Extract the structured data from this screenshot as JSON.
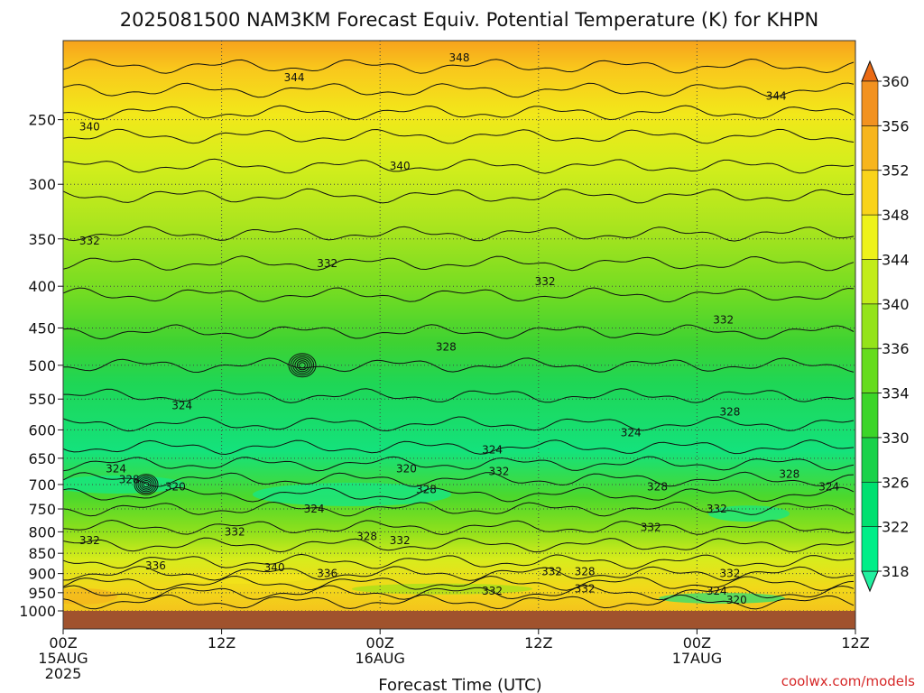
{
  "chart_data": {
    "type": "heatmap",
    "title": "2025081500 NAM3KM Forecast Equiv. Potential Temperature (K) for KHPN",
    "xlabel": "Forecast Time (UTC)",
    "ylabel": "",
    "y_axis": {
      "scale": "log-pressure",
      "inverted": true,
      "ticks": [
        "250",
        "300",
        "350",
        "400",
        "450",
        "500",
        "550",
        "600",
        "650",
        "700",
        "750",
        "800",
        "850",
        "900",
        "950",
        "1000"
      ],
      "range": [
        1000,
        200
      ]
    },
    "x_axis": {
      "range_hours": [
        0,
        60
      ],
      "ticks": [
        {
          "line1": "00Z",
          "line2": "15AUG",
          "line3": "2025"
        },
        {
          "line1": "12Z",
          "line2": "",
          "line3": ""
        },
        {
          "line1": "00Z",
          "line2": "16AUG",
          "line3": ""
        },
        {
          "line1": "12Z",
          "line2": "",
          "line3": ""
        },
        {
          "line1": "00Z",
          "line2": "17AUG",
          "line3": ""
        },
        {
          "line1": "12Z",
          "line2": "",
          "line3": ""
        }
      ]
    },
    "colorbar": {
      "ticks": [
        "318",
        "322",
        "326",
        "330",
        "334",
        "336",
        "340",
        "344",
        "348",
        "352",
        "356",
        "360"
      ]
    },
    "contour_labels": [
      {
        "text": "348",
        "hour": 30,
        "level": 210
      },
      {
        "text": "344",
        "hour": 17.5,
        "level": 222
      },
      {
        "text": "344",
        "hour": 54,
        "level": 234
      },
      {
        "text": "340",
        "hour": 2,
        "level": 255
      },
      {
        "text": "340",
        "hour": 25.5,
        "level": 285
      },
      {
        "text": "332",
        "hour": 2,
        "level": 352
      },
      {
        "text": "332",
        "hour": 20,
        "level": 375
      },
      {
        "text": "332",
        "hour": 36.5,
        "level": 395
      },
      {
        "text": "332",
        "hour": 50,
        "level": 440
      },
      {
        "text": "328",
        "hour": 29,
        "level": 475
      },
      {
        "text": "328",
        "hour": 50.5,
        "level": 570
      },
      {
        "text": "324",
        "hour": 9,
        "level": 560
      },
      {
        "text": "324",
        "hour": 43,
        "level": 605
      },
      {
        "text": "324",
        "hour": 32.5,
        "level": 635
      },
      {
        "text": "324",
        "hour": 4,
        "level": 670
      },
      {
        "text": "328",
        "hour": 5,
        "level": 690
      },
      {
        "text": "320",
        "hour": 8.5,
        "level": 705
      },
      {
        "text": "320",
        "hour": 26,
        "level": 670
      },
      {
        "text": "332",
        "hour": 33,
        "level": 675
      },
      {
        "text": "328",
        "hour": 27.5,
        "level": 710
      },
      {
        "text": "324",
        "hour": 19,
        "level": 750
      },
      {
        "text": "328",
        "hour": 45,
        "level": 705
      },
      {
        "text": "332",
        "hour": 49.5,
        "level": 750
      },
      {
        "text": "328",
        "hour": 55,
        "level": 680
      },
      {
        "text": "324",
        "hour": 58,
        "level": 705
      },
      {
        "text": "332",
        "hour": 13,
        "level": 800
      },
      {
        "text": "332",
        "hour": 44.5,
        "level": 790
      },
      {
        "text": "328",
        "hour": 23,
        "level": 810
      },
      {
        "text": "332",
        "hour": 25.5,
        "level": 820
      },
      {
        "text": "332",
        "hour": 2,
        "level": 820
      },
      {
        "text": "336",
        "hour": 7,
        "level": 880
      },
      {
        "text": "340",
        "hour": 16,
        "level": 885
      },
      {
        "text": "336",
        "hour": 20,
        "level": 900
      },
      {
        "text": "332",
        "hour": 37,
        "level": 895
      },
      {
        "text": "328",
        "hour": 39.5,
        "level": 895
      },
      {
        "text": "332",
        "hour": 32.5,
        "level": 945
      },
      {
        "text": "332",
        "hour": 39.5,
        "level": 940
      },
      {
        "text": "332",
        "hour": 50.5,
        "level": 900
      },
      {
        "text": "324",
        "hour": 49.5,
        "level": 945
      },
      {
        "text": "320",
        "hour": 51,
        "level": 970
      }
    ]
  },
  "credit": "coolwx.com/models",
  "colors": {
    "ground": "#a0522d",
    "grid": "#444444",
    "scale": [
      "#00ee88",
      "#00e070",
      "#1ad24a",
      "#3cd528",
      "#66dc1e",
      "#94e31a",
      "#c2ec1a",
      "#eef21a",
      "#f9d31a",
      "#f7b51e",
      "#f29220",
      "#ea6a14"
    ]
  }
}
